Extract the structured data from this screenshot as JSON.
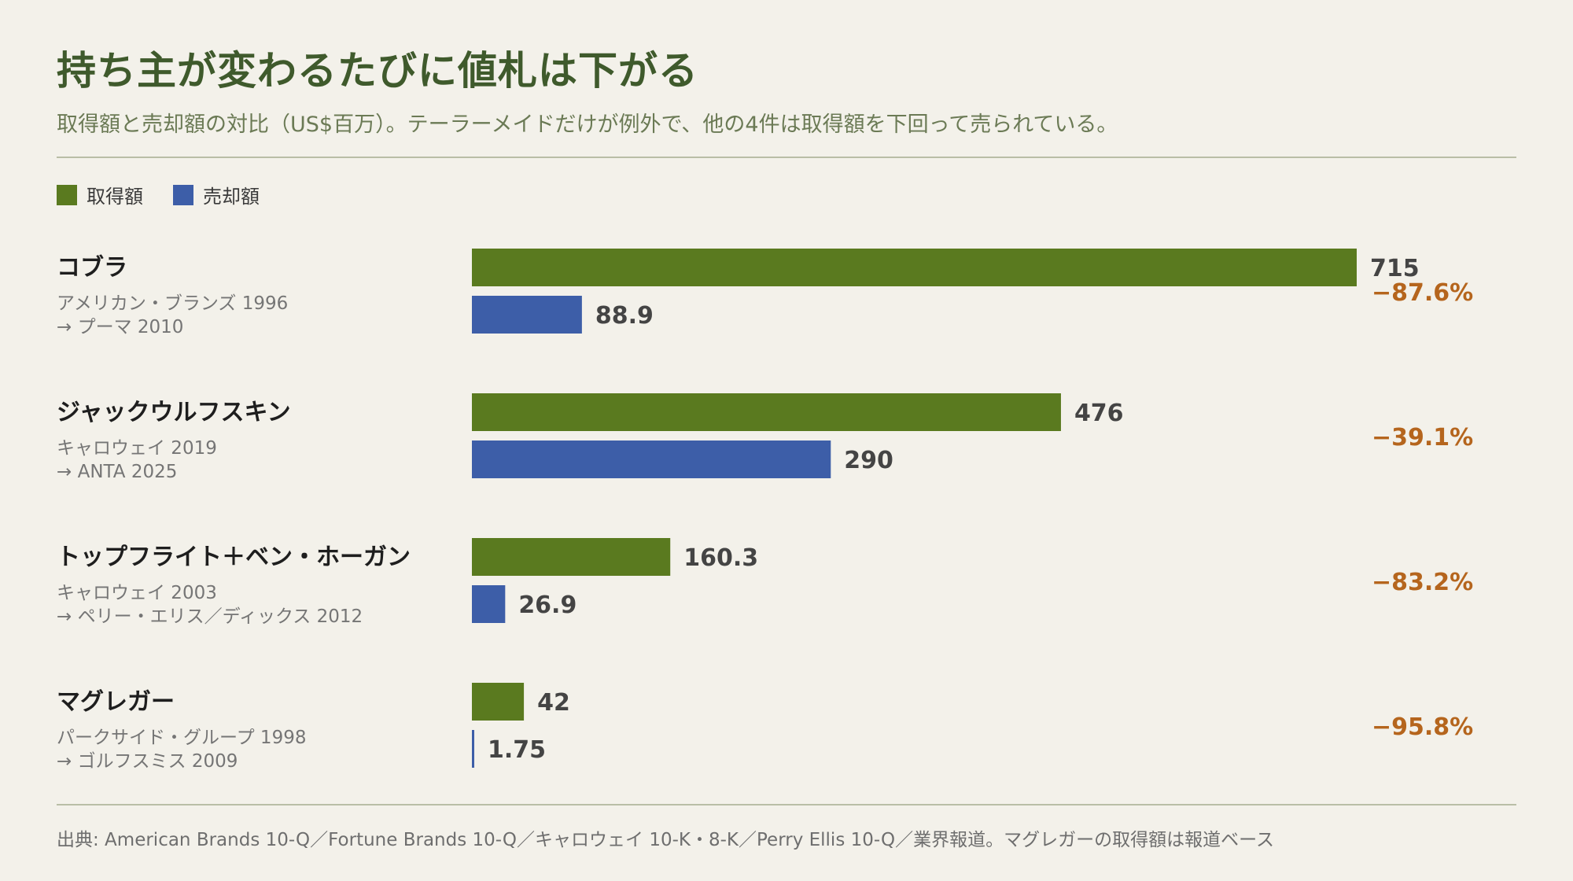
{
  "header": {
    "title": "持ち主が変わるたびに値札は下がる",
    "subtitle": "取得額と売却額の対比（US$百万）。テーラーメイドだけが例外で、他の4件は取得額を下回って売られている。"
  },
  "legend": [
    {
      "label": "取得額",
      "color": "#5a7a1f"
    },
    {
      "label": "売却額",
      "color": "#3d5ea8"
    }
  ],
  "colors": {
    "acquisition": "#5a7a1f",
    "sale": "#3d5ea8",
    "change": "#b5651d",
    "brand_name": "#1e1e1e",
    "deal_text": "#757575",
    "value_text": "#444444"
  },
  "chart_data": {
    "type": "bar",
    "orientation": "horizontal",
    "unit": "US$百万",
    "series": [
      {
        "name": "取得額",
        "values": [
          715,
          476,
          160.3,
          42
        ]
      },
      {
        "name": "売却額",
        "values": [
          88.9,
          290,
          26.9,
          1.75
        ]
      }
    ],
    "value_labels": {
      "acquisition": [
        "715",
        "476",
        "160.3",
        "42"
      ],
      "sale": [
        "88.9",
        "290",
        "26.9",
        "1.75"
      ]
    },
    "categories": [
      {
        "name": "コブラ",
        "acquired": "アメリカン・ブランズ 1996",
        "sold": "→ プーマ 2010",
        "change": "−87.6%"
      },
      {
        "name": "ジャックウルフスキン",
        "acquired": "キャロウェイ 2019",
        "sold": "→ ANTA 2025",
        "change": "−39.1%"
      },
      {
        "name": "トップフライト＋ベン・ホーガン",
        "acquired": "キャロウェイ 2003",
        "sold": "→ ペリー・エリス／ディックス 2012",
        "change": "−83.2%"
      },
      {
        "name": "マグレガー",
        "acquired": "パークサイド・グループ 1998",
        "sold": "→ ゴルフスミス 2009",
        "change": "−95.8%"
      }
    ],
    "xlim": [
      0,
      715
    ],
    "grid": false,
    "legend_position": "top-left"
  },
  "footer": {
    "source": "出典: American Brands 10-Q／Fortune Brands 10-Q／キャロウェイ 10-K・8-K／Perry Ellis 10-Q／業界報道。マグレガーの取得額は報道ベース"
  }
}
